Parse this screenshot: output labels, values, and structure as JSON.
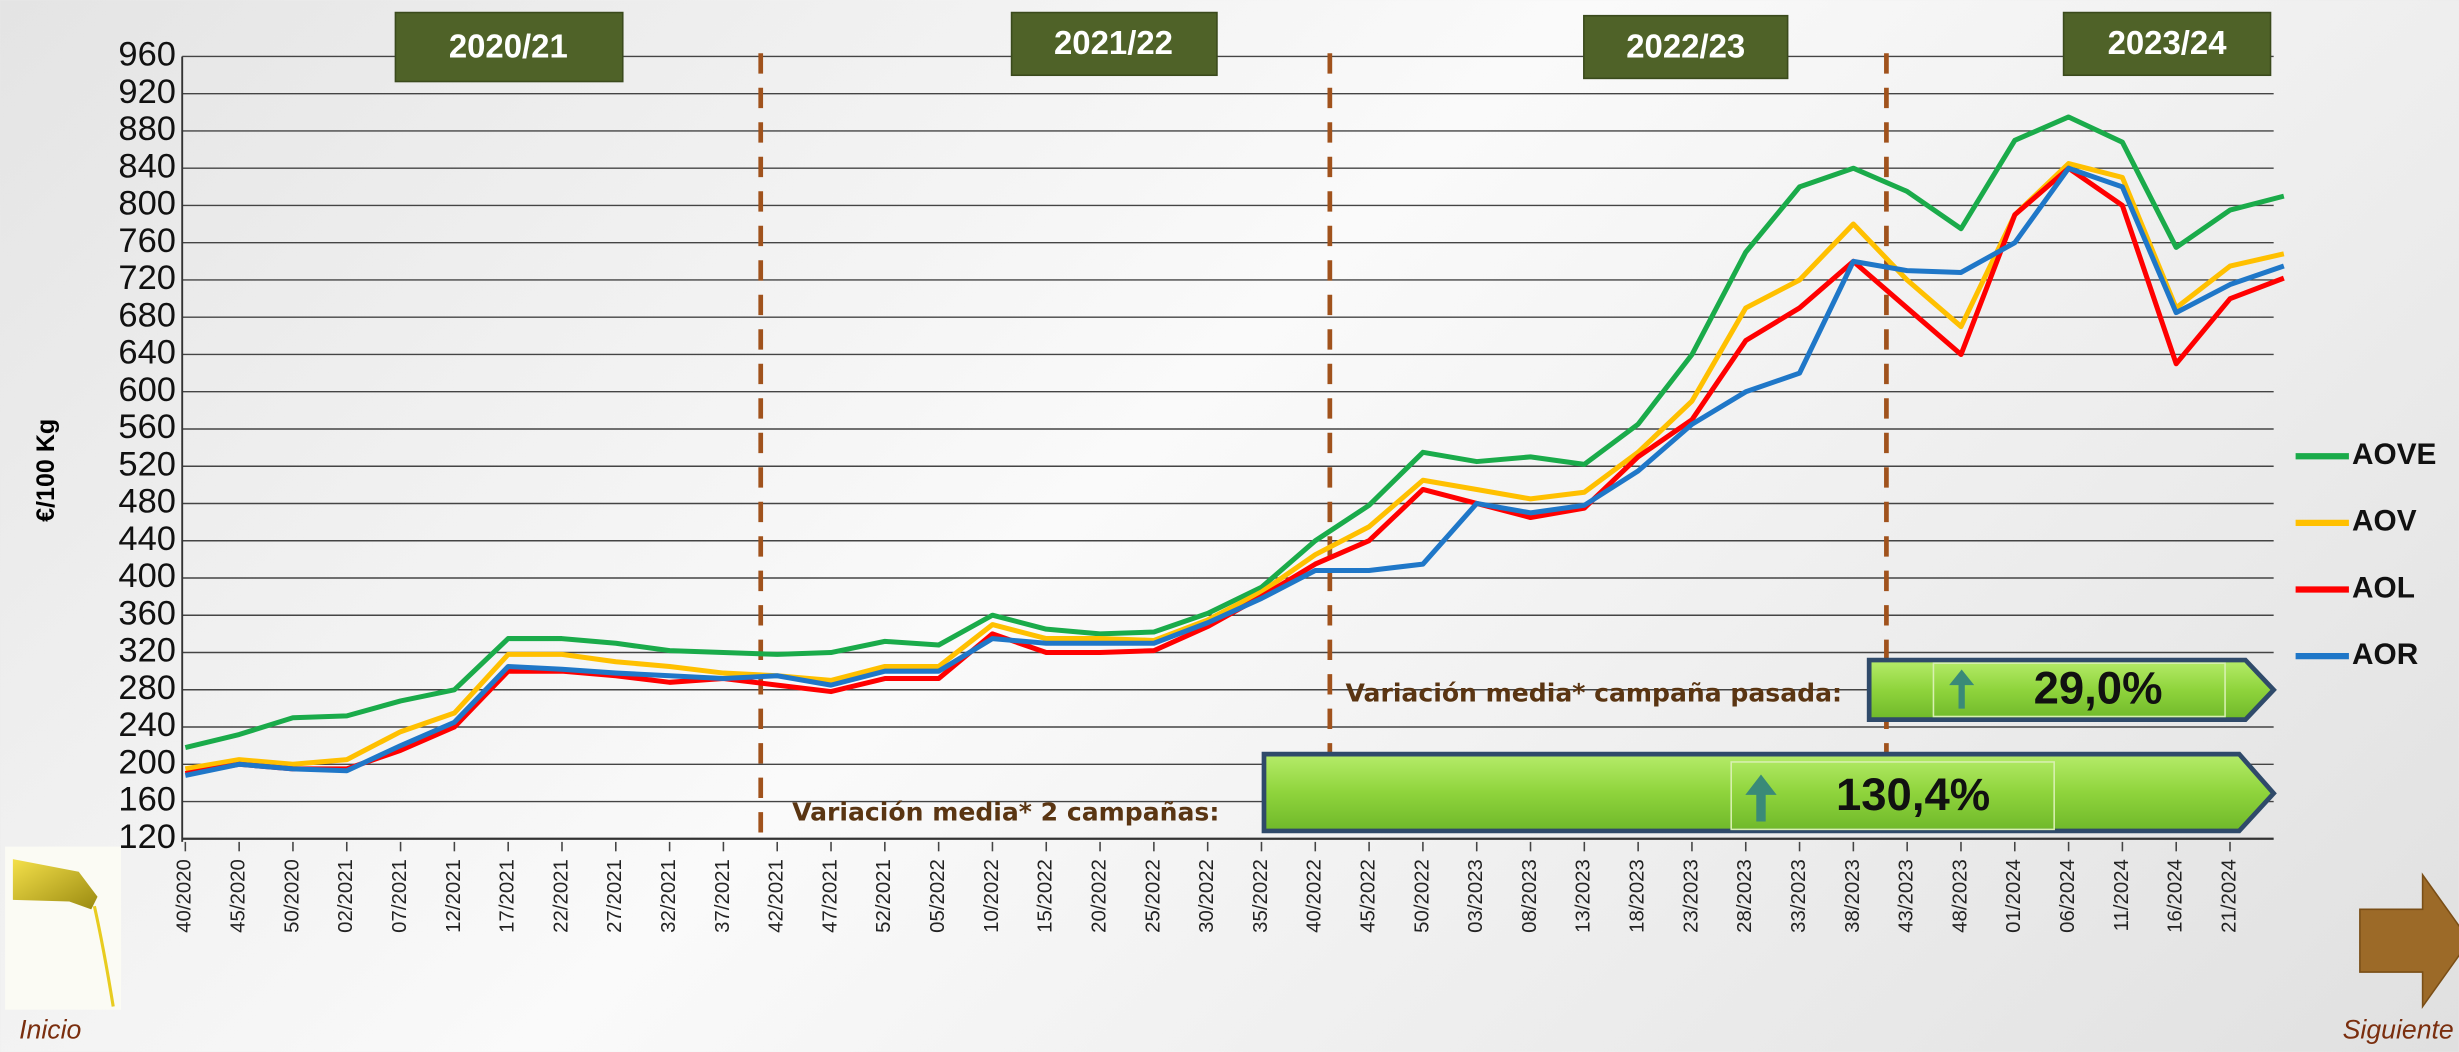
{
  "chart_data": {
    "type": "line",
    "y_label": "€/100 Kg",
    "categories": [
      "40/2020",
      "45/2020",
      "50/2020",
      "02/2021",
      "07/2021",
      "12/2021",
      "17/2021",
      "22/2021",
      "27/2021",
      "32/2021",
      "37/2021",
      "42/2021",
      "47/2021",
      "52/2021",
      "05/2022",
      "10/2022",
      "15/2022",
      "20/2022",
      "25/2022",
      "30/2022",
      "35/2022",
      "40/2022",
      "45/2022",
      "50/2022",
      "03/2023",
      "08/2023",
      "13/2023",
      "18/2023",
      "23/2023",
      "28/2023",
      "33/2023",
      "38/2023",
      "43/2023",
      "48/2023",
      "01/2024",
      "06/2024",
      "11/2024",
      "16/2024",
      "21/2024",
      null
    ],
    "series": [
      {
        "name": "AOVE",
        "color": "#1aab4a",
        "values": [
          218,
          232,
          250,
          252,
          268,
          280,
          335,
          335,
          330,
          322,
          320,
          318,
          320,
          332,
          328,
          360,
          345,
          340,
          342,
          362,
          390,
          440,
          478,
          535,
          525,
          530,
          522,
          565,
          640,
          750,
          820,
          840,
          815,
          775,
          870,
          895,
          868,
          755,
          795,
          810
        ]
      },
      {
        "name": "AOV",
        "color": "#ffc000",
        "values": [
          195,
          205,
          200,
          205,
          235,
          255,
          318,
          318,
          310,
          305,
          298,
          295,
          290,
          305,
          305,
          350,
          335,
          335,
          333,
          355,
          385,
          425,
          455,
          505,
          495,
          485,
          492,
          535,
          590,
          690,
          720,
          780,
          720,
          670,
          790,
          845,
          830,
          690,
          735,
          748
        ]
      },
      {
        "name": "AOL",
        "color": "#ff0000",
        "values": [
          190,
          200,
          195,
          195,
          215,
          240,
          300,
          300,
          295,
          288,
          292,
          285,
          278,
          292,
          292,
          340,
          320,
          320,
          322,
          348,
          380,
          415,
          440,
          495,
          480,
          465,
          475,
          530,
          570,
          655,
          690,
          740,
          690,
          640,
          790,
          840,
          800,
          630,
          700,
          722
        ]
      },
      {
        "name": "AOR",
        "color": "#1f77c8",
        "values": [
          188,
          200,
          195,
          193,
          220,
          245,
          305,
          302,
          298,
          295,
          292,
          295,
          285,
          300,
          300,
          335,
          330,
          330,
          330,
          352,
          378,
          408,
          408,
          415,
          480,
          470,
          478,
          515,
          565,
          600,
          620,
          740,
          730,
          728,
          760,
          840,
          820,
          685,
          715,
          735
        ]
      }
    ],
    "ylim": [
      120,
      960
    ],
    "yticks": [
      120,
      160,
      200,
      240,
      280,
      320,
      360,
      400,
      440,
      480,
      520,
      560,
      600,
      640,
      680,
      720,
      760,
      800,
      840,
      880,
      920,
      960
    ],
    "grid": true,
    "legend": "right",
    "campaigns": [
      "2020/21",
      "2021/22",
      "2022/23",
      "2023/24"
    ],
    "annotations": [
      {
        "text": "Variación media* campaña pasada:",
        "value_label": "29,0%"
      },
      {
        "text": "Variación media* 2 campañas:",
        "value_label": "130,4%"
      }
    ]
  },
  "navigation": {
    "back": "Inicio",
    "next": "Siguiente"
  }
}
